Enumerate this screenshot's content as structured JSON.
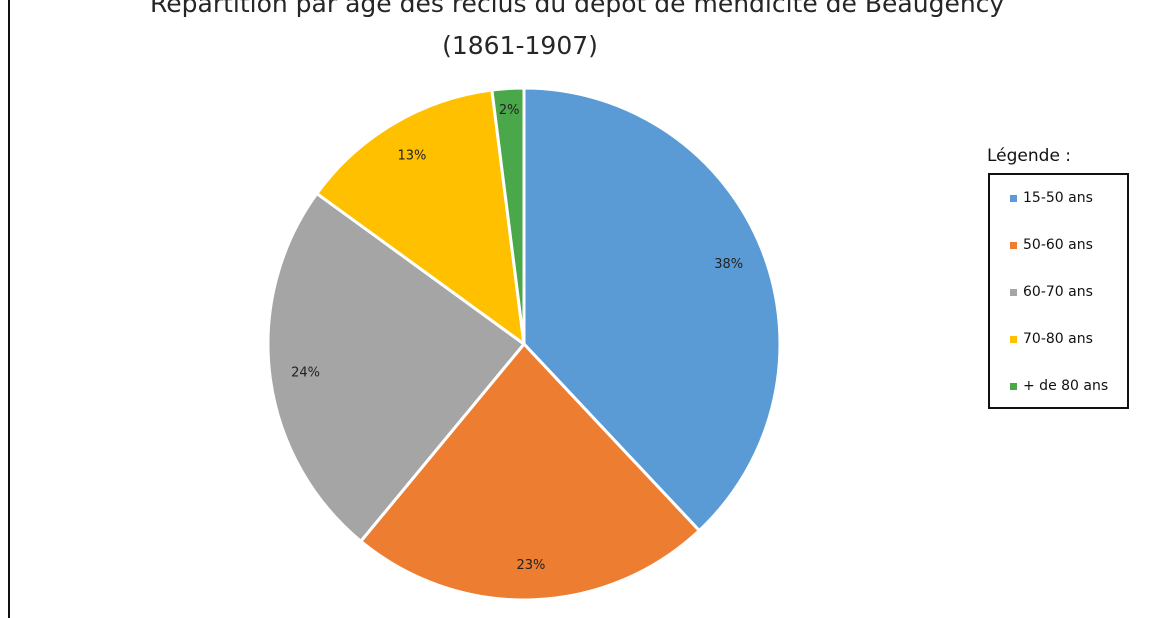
{
  "chart_data": {
    "type": "pie",
    "title_line1": "Répartition par âge des reclus du dépôt de mendicité de Beaugency",
    "title_line2": "(1861-1907)",
    "legend_title": "Légende :",
    "legend_placement": "right",
    "categories": [
      "15-50 ans",
      "50-60 ans",
      "60-70 ans",
      "70-80 ans",
      "+ de 80 ans"
    ],
    "values": [
      38,
      23,
      24,
      13,
      2
    ],
    "labels": [
      "38%",
      "23%",
      "24%",
      "13%",
      "2%"
    ],
    "colors": [
      "#5b9bd5",
      "#ed7d31",
      "#a5a5a5",
      "#ffc000",
      "#4aa84a"
    ]
  }
}
